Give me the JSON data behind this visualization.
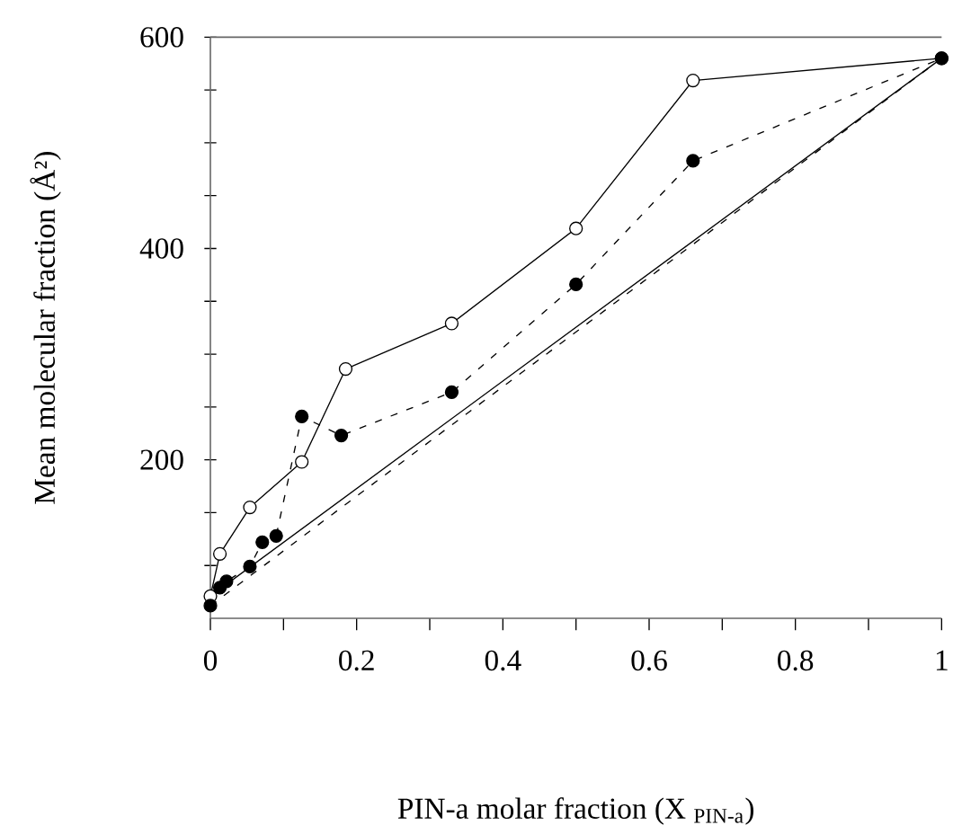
{
  "chart_data": {
    "type": "line",
    "xlabel": "PIN-a molar fraction (X $_{PIN-a}$)",
    "ylabel": "Mean molecular fraction (Å²)",
    "xlim": [
      0,
      1
    ],
    "ylim": [
      50,
      600
    ],
    "xticks": [
      0,
      {
        "value": 0.1,
        "label": null
      },
      0.2,
      {
        "value": 0.3,
        "label": null
      },
      0.4,
      {
        "value": 0.5,
        "label": null
      },
      0.6,
      {
        "value": 0.7,
        "label": null
      },
      0.8,
      {
        "value": 0.9,
        "label": null
      },
      1
    ],
    "yticks": [
      {
        "value": 100,
        "label": null
      },
      {
        "value": 150,
        "label": null
      },
      200,
      {
        "value": 250,
        "label": null
      },
      {
        "value": 300,
        "label": null
      },
      {
        "value": 350,
        "label": null
      },
      400,
      {
        "value": 450,
        "label": null
      },
      {
        "value": 500,
        "label": null
      },
      {
        "value": 550,
        "label": null
      },
      600
    ],
    "series": [
      {
        "color": "#000000",
        "marker": "circle",
        "line_style": "solid",
        "x": [
          0,
          0.013,
          0.054,
          0.125,
          0.185,
          0.33,
          0.5,
          0.66,
          1
        ],
        "values": [
          71,
          111,
          155,
          198,
          286,
          329,
          419,
          559,
          580
        ]
      },
      {
        "color": "#000000",
        "marker": "circle",
        "line_style": "dashed",
        "x": [
          0,
          0.013,
          0.022,
          0.054,
          0.071,
          0.09,
          0.125,
          0.179,
          0.33,
          0.5,
          0.66,
          1
        ],
        "values": [
          62,
          79,
          85,
          99,
          122,
          128,
          241,
          223,
          264,
          366,
          483,
          580
        ]
      },
      {
        "color": "#000000",
        "marker": "none",
        "line_style": "solid",
        "x": [
          0,
          1
        ],
        "values": [
          71,
          580
        ]
      },
      {
        "color": "#000000",
        "marker": "none",
        "line_style": "dashed",
        "x": [
          0,
          1
        ],
        "values": [
          62,
          580
        ]
      }
    ]
  }
}
